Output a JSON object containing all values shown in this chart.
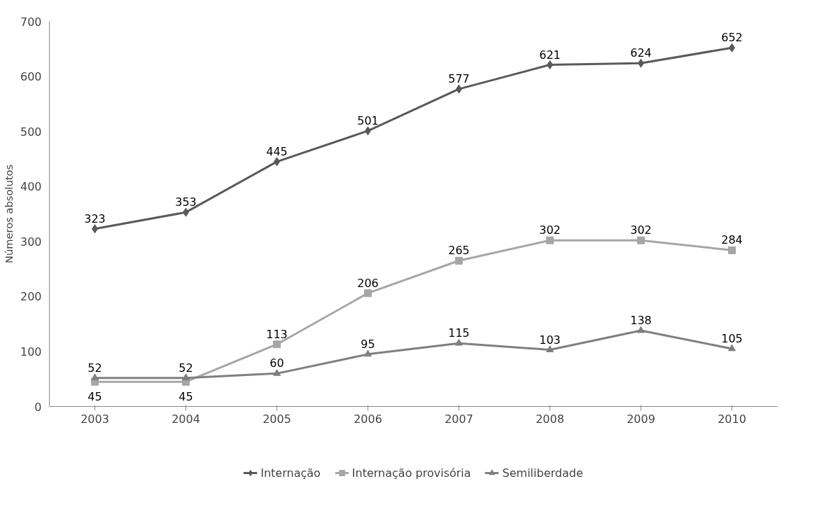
{
  "chart_data": {
    "type": "line",
    "ylabel": "Números absolutos",
    "categories": [
      "2003",
      "2004",
      "2005",
      "2006",
      "2007",
      "2008",
      "2009",
      "2010"
    ],
    "series": [
      {
        "name": "Internação",
        "color": "#595959",
        "marker": "diamond",
        "values": [
          323,
          353,
          445,
          501,
          577,
          621,
          624,
          652
        ]
      },
      {
        "name": "Internação provisória",
        "color": "#a6a6a6",
        "marker": "square",
        "values": [
          45,
          45,
          113,
          206,
          265,
          302,
          302,
          284
        ]
      },
      {
        "name": "Semiliberdade",
        "color": "#7f7f7f",
        "marker": "triangle",
        "values": [
          52,
          52,
          60,
          95,
          115,
          103,
          138,
          105
        ]
      }
    ],
    "ylim": [
      0,
      700
    ],
    "yticks": [
      0,
      100,
      200,
      300,
      400,
      500,
      600,
      700
    ],
    "grid": false,
    "legend": "bottom",
    "data_labels": true
  }
}
